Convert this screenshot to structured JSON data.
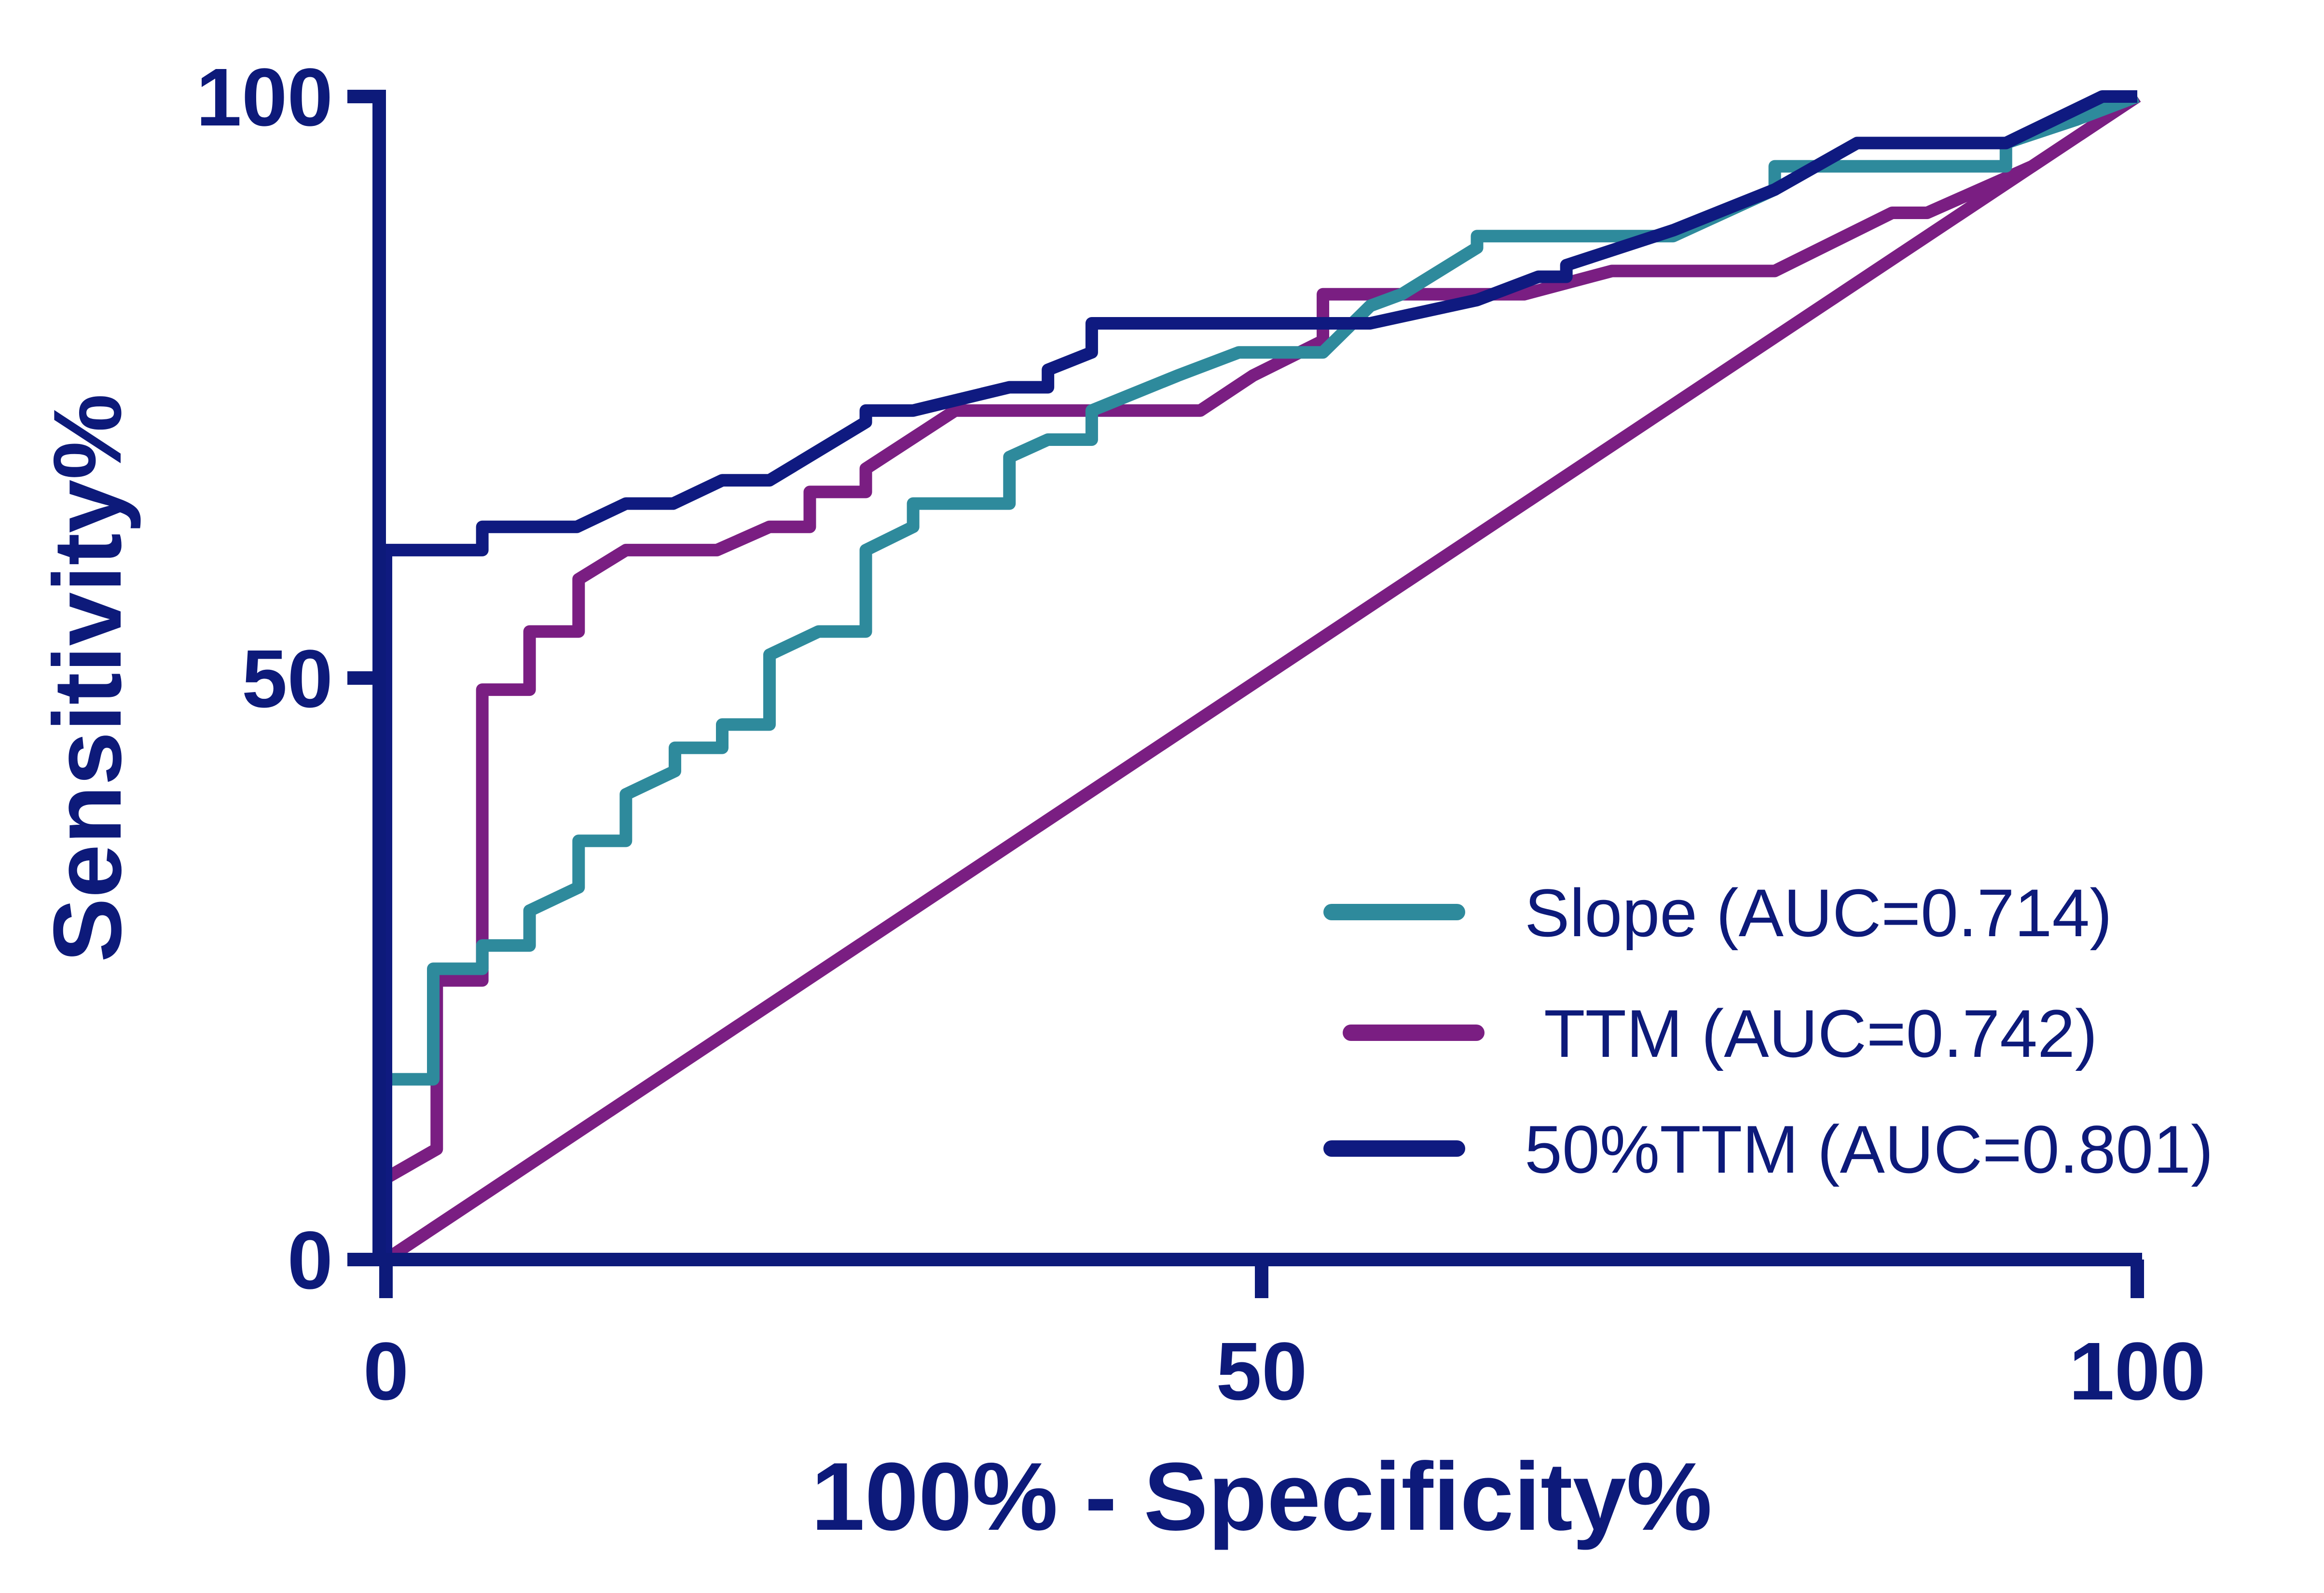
{
  "chart_data": {
    "type": "line",
    "title": "",
    "xlabel": "100% - Specificity%",
    "ylabel": "Sensitivity%",
    "xlim": [
      0,
      100
    ],
    "ylim": [
      0,
      100
    ],
    "x_ticks": [
      "0",
      "50",
      "100"
    ],
    "y_ticks": [
      "0",
      "50",
      "100"
    ],
    "grid": false,
    "legend_position": "bottom-right",
    "axis_color": "#0d1a7a",
    "series": [
      {
        "name": "Slope (AUC=0.714)",
        "color": "#2e8a9c",
        "points": [
          [
            0,
            0
          ],
          [
            0,
            15.5
          ],
          [
            2.7,
            15.5
          ],
          [
            2.7,
            25
          ],
          [
            5.5,
            25
          ],
          [
            5.5,
            27
          ],
          [
            8.2,
            27
          ],
          [
            8.2,
            30
          ],
          [
            11,
            32
          ],
          [
            11,
            36
          ],
          [
            13.7,
            36
          ],
          [
            13.7,
            40
          ],
          [
            16.5,
            42
          ],
          [
            16.5,
            44
          ],
          [
            19.2,
            44
          ],
          [
            19.2,
            46
          ],
          [
            21.9,
            46
          ],
          [
            21.9,
            52
          ],
          [
            24.7,
            54
          ],
          [
            24.7,
            54
          ],
          [
            27.4,
            54
          ],
          [
            27.4,
            61
          ],
          [
            30.1,
            63
          ],
          [
            30.1,
            65
          ],
          [
            35.6,
            65
          ],
          [
            35.6,
            69
          ],
          [
            37.8,
            70.5
          ],
          [
            40.3,
            70.5
          ],
          [
            40.3,
            73
          ],
          [
            45.2,
            76
          ],
          [
            48.7,
            78
          ],
          [
            53.5,
            78
          ],
          [
            56.2,
            82
          ],
          [
            58,
            83
          ],
          [
            62.3,
            87
          ],
          [
            62.3,
            88
          ],
          [
            73.5,
            88
          ],
          [
            79.3,
            92
          ],
          [
            79.3,
            94
          ],
          [
            92.5,
            94
          ],
          [
            92.5,
            96
          ],
          [
            96.5,
            98
          ],
          [
            100,
            100
          ]
        ]
      },
      {
        "name": "TTM (AUC=0.742)",
        "color": "#7a1e82",
        "points": [
          [
            0,
            7
          ],
          [
            2.9,
            9.5
          ],
          [
            2.9,
            24
          ],
          [
            5.5,
            24
          ],
          [
            5.5,
            49
          ],
          [
            8.2,
            49
          ],
          [
            8.2,
            54
          ],
          [
            11,
            54
          ],
          [
            11,
            58.5
          ],
          [
            13.7,
            61
          ],
          [
            18.9,
            61
          ],
          [
            21.9,
            63
          ],
          [
            24.2,
            63
          ],
          [
            24.2,
            66
          ],
          [
            27.4,
            66
          ],
          [
            27.4,
            68
          ],
          [
            32.5,
            73
          ],
          [
            46.5,
            73
          ],
          [
            49.5,
            76
          ],
          [
            53.5,
            79
          ],
          [
            53.5,
            83
          ],
          [
            65,
            83
          ],
          [
            70,
            85
          ],
          [
            79.3,
            85
          ],
          [
            86,
            90
          ],
          [
            88,
            90
          ],
          [
            94,
            94
          ],
          [
            98,
            98
          ],
          [
            100,
            100
          ]
        ]
      },
      {
        "name": "",
        "color": "#7a1e82",
        "points": [
          [
            0,
            0
          ],
          [
            100,
            100
          ]
        ]
      },
      {
        "name": "50%TTM (AUC=0.801)",
        "color": "#0f1a80",
        "points": [
          [
            0,
            0
          ],
          [
            0,
            61
          ],
          [
            5.5,
            61
          ],
          [
            5.5,
            63
          ],
          [
            10.9,
            63
          ],
          [
            13.7,
            65
          ],
          [
            16.4,
            65
          ],
          [
            19.2,
            67
          ],
          [
            21.9,
            67
          ],
          [
            27.4,
            72
          ],
          [
            27.4,
            73
          ],
          [
            30.1,
            73
          ],
          [
            35.6,
            75
          ],
          [
            37.8,
            75
          ],
          [
            37.8,
            76.5
          ],
          [
            40.3,
            78
          ],
          [
            40.3,
            80.5
          ],
          [
            56.2,
            80.5
          ],
          [
            62.3,
            82.5
          ],
          [
            65.8,
            84.5
          ],
          [
            67.4,
            84.5
          ],
          [
            67.4,
            85.5
          ],
          [
            73.5,
            88.5
          ],
          [
            79.3,
            92
          ],
          [
            84,
            96
          ],
          [
            92.5,
            96
          ],
          [
            98,
            100
          ],
          [
            100,
            100
          ]
        ]
      }
    ]
  }
}
